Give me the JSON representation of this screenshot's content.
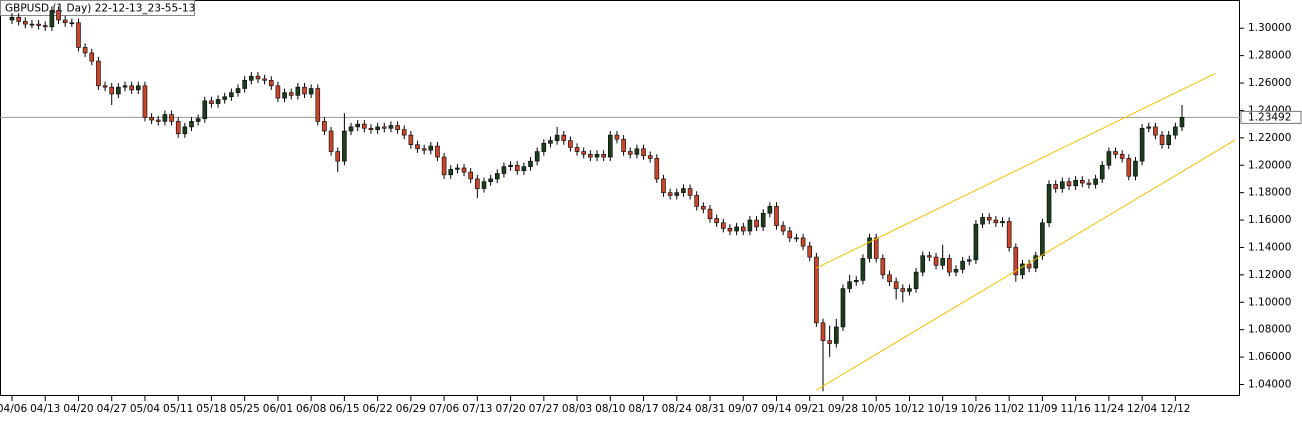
{
  "chart_data": {
    "type": "candlestick",
    "title": "GBPUSD (1 Day) 22-12-13_23-55-13",
    "up_color": "#1e3d1e",
    "down_color": "#c9452b",
    "trendline_color": "#f2c200",
    "price_line": 1.23492,
    "ylim": [
      1.0316,
      1.3206
    ],
    "yticks": [
      {
        "value": 1.3,
        "label": "1.30000"
      },
      {
        "value": 1.28,
        "label": "1.28000"
      },
      {
        "value": 1.26,
        "label": "1.26000"
      },
      {
        "value": 1.24,
        "label": "1.24000"
      },
      {
        "value": 1.22,
        "label": "1.22000"
      },
      {
        "value": 1.2,
        "label": "1.20000"
      },
      {
        "value": 1.18,
        "label": "1.18000"
      },
      {
        "value": 1.16,
        "label": "1.16000"
      },
      {
        "value": 1.14,
        "label": "1.14000"
      },
      {
        "value": 1.12,
        "label": "1.12000"
      },
      {
        "value": 1.1,
        "label": "1.10000"
      },
      {
        "value": 1.08,
        "label": "1.08000"
      },
      {
        "value": 1.06,
        "label": "1.06000"
      },
      {
        "value": 1.04,
        "label": "1.04000"
      }
    ],
    "categories": [
      "04/06",
      null,
      null,
      null,
      null,
      "04/13",
      null,
      null,
      null,
      null,
      "04/20",
      null,
      null,
      null,
      null,
      "04/27",
      null,
      null,
      null,
      null,
      "05/04",
      null,
      null,
      null,
      null,
      "05/11",
      null,
      null,
      null,
      null,
      "05/18",
      null,
      null,
      null,
      null,
      "05/25",
      null,
      null,
      null,
      null,
      "06/01",
      null,
      null,
      null,
      null,
      "06/08",
      null,
      null,
      null,
      null,
      "06/15",
      null,
      null,
      null,
      null,
      "06/22",
      null,
      null,
      null,
      null,
      "06/29",
      null,
      null,
      null,
      null,
      "07/06",
      null,
      null,
      null,
      null,
      "07/13",
      null,
      null,
      null,
      null,
      "07/20",
      null,
      null,
      null,
      null,
      "07/27",
      null,
      null,
      null,
      null,
      "08/03",
      null,
      null,
      null,
      null,
      "08/10",
      null,
      null,
      null,
      null,
      "08/17",
      null,
      null,
      null,
      null,
      "08/24",
      null,
      null,
      null,
      null,
      "08/31",
      null,
      null,
      null,
      null,
      "09/07",
      null,
      null,
      null,
      null,
      "09/14",
      null,
      null,
      null,
      null,
      "09/21",
      null,
      null,
      null,
      null,
      "09/28",
      null,
      null,
      null,
      null,
      "10/05",
      null,
      null,
      null,
      null,
      "10/12",
      null,
      null,
      null,
      null,
      "10/19",
      null,
      null,
      null,
      null,
      "10/26",
      null,
      null,
      null,
      null,
      "11/02",
      null,
      null,
      null,
      null,
      "11/09",
      null,
      null,
      null,
      null,
      "11/16",
      null,
      null,
      null,
      null,
      "11/24",
      null,
      null,
      null,
      null,
      "12/04",
      null,
      null,
      null,
      null,
      "12/12",
      null
    ],
    "open": [
      1.306,
      1.308,
      1.305,
      1.303,
      1.303,
      1.302,
      1.301,
      1.313,
      1.306,
      1.304,
      1.304,
      1.286,
      1.282,
      1.276,
      1.258,
      1.257,
      1.252,
      1.257,
      1.258,
      1.255,
      1.258,
      1.235,
      1.233,
      1.232,
      1.237,
      1.232,
      1.223,
      1.228,
      1.232,
      1.234,
      1.247,
      1.245,
      1.248,
      1.25,
      1.253,
      1.256,
      1.262,
      1.265,
      1.263,
      1.262,
      1.258,
      1.249,
      1.253,
      1.251,
      1.257,
      1.252,
      1.256,
      1.232,
      1.225,
      1.21,
      1.203,
      1.225,
      1.228,
      1.23,
      1.227,
      1.226,
      1.228,
      1.227,
      1.229,
      1.226,
      1.222,
      1.215,
      1.212,
      1.211,
      1.214,
      1.206,
      1.193,
      1.197,
      1.198,
      1.195,
      1.19,
      1.183,
      1.188,
      1.19,
      1.194,
      1.199,
      1.2,
      1.196,
      1.199,
      1.203,
      1.21,
      1.216,
      1.218,
      1.222,
      1.218,
      1.213,
      1.21,
      1.208,
      1.206,
      1.208,
      1.206,
      1.222,
      1.219,
      1.21,
      1.208,
      1.212,
      1.207,
      1.205,
      1.19,
      1.18,
      1.178,
      1.18,
      1.183,
      1.178,
      1.17,
      1.168,
      1.161,
      1.158,
      1.154,
      1.152,
      1.155,
      1.152,
      1.16,
      1.155,
      1.165,
      1.17,
      1.156,
      1.152,
      1.147,
      1.147,
      1.141,
      1.133,
      1.085,
      1.072,
      1.07,
      1.082,
      1.11,
      1.115,
      1.116,
      1.132,
      1.147,
      1.132,
      1.12,
      1.115,
      1.11,
      1.108,
      1.11,
      1.122,
      1.134,
      1.133,
      1.127,
      1.132,
      1.122,
      1.124,
      1.13,
      1.131,
      1.157,
      1.162,
      1.16,
      1.158,
      1.159,
      1.14,
      1.12,
      1.128,
      1.125,
      1.134,
      1.158,
      1.186,
      1.183,
      1.188,
      1.185,
      1.189,
      1.187,
      1.186,
      1.19,
      1.2,
      1.21,
      1.208,
      1.205,
      1.192,
      1.203,
      1.227,
      1.228,
      1.222,
      1.215,
      1.222,
      1.228
    ],
    "high": [
      1.311,
      1.311,
      1.308,
      1.306,
      1.306,
      1.305,
      1.316,
      1.316,
      1.309,
      1.307,
      1.307,
      1.289,
      1.285,
      1.279,
      1.261,
      1.26,
      1.26,
      1.261,
      1.261,
      1.261,
      1.261,
      1.238,
      1.236,
      1.24,
      1.24,
      1.235,
      1.231,
      1.235,
      1.237,
      1.25,
      1.25,
      1.251,
      1.253,
      1.256,
      1.259,
      1.265,
      1.268,
      1.268,
      1.266,
      1.265,
      1.261,
      1.256,
      1.256,
      1.26,
      1.26,
      1.259,
      1.259,
      1.235,
      1.228,
      1.213,
      1.238,
      1.231,
      1.233,
      1.233,
      1.23,
      1.231,
      1.231,
      1.232,
      1.232,
      1.229,
      1.225,
      1.218,
      1.215,
      1.217,
      1.217,
      1.209,
      1.2,
      1.201,
      1.201,
      1.198,
      1.193,
      1.191,
      1.193,
      1.197,
      1.202,
      1.203,
      1.203,
      1.202,
      1.206,
      1.213,
      1.219,
      1.221,
      1.228,
      1.225,
      1.221,
      1.216,
      1.213,
      1.211,
      1.211,
      1.211,
      1.225,
      1.225,
      1.222,
      1.213,
      1.215,
      1.215,
      1.21,
      1.208,
      1.193,
      1.183,
      1.183,
      1.186,
      1.186,
      1.181,
      1.173,
      1.171,
      1.164,
      1.161,
      1.157,
      1.158,
      1.158,
      1.163,
      1.163,
      1.168,
      1.173,
      1.173,
      1.159,
      1.155,
      1.15,
      1.15,
      1.144,
      1.136,
      1.088,
      1.083,
      1.088,
      1.113,
      1.12,
      1.119,
      1.135,
      1.15,
      1.15,
      1.135,
      1.123,
      1.118,
      1.113,
      1.113,
      1.125,
      1.137,
      1.137,
      1.136,
      1.142,
      1.135,
      1.127,
      1.133,
      1.134,
      1.16,
      1.165,
      1.165,
      1.163,
      1.162,
      1.162,
      1.143,
      1.131,
      1.131,
      1.137,
      1.161,
      1.189,
      1.189,
      1.191,
      1.191,
      1.192,
      1.192,
      1.19,
      1.193,
      1.203,
      1.213,
      1.213,
      1.211,
      1.208,
      1.206,
      1.23,
      1.231,
      1.231,
      1.225,
      1.225,
      1.231,
      1.244
    ],
    "low": [
      1.303,
      1.302,
      1.3,
      1.3,
      1.299,
      1.298,
      1.298,
      1.303,
      1.301,
      1.301,
      1.283,
      1.279,
      1.273,
      1.255,
      1.254,
      1.244,
      1.249,
      1.254,
      1.252,
      1.252,
      1.232,
      1.23,
      1.229,
      1.229,
      1.229,
      1.22,
      1.22,
      1.225,
      1.229,
      1.231,
      1.242,
      1.242,
      1.245,
      1.247,
      1.25,
      1.253,
      1.259,
      1.26,
      1.259,
      1.255,
      1.246,
      1.246,
      1.248,
      1.248,
      1.249,
      1.249,
      1.229,
      1.222,
      1.207,
      1.195,
      1.2,
      1.222,
      1.225,
      1.224,
      1.223,
      1.223,
      1.224,
      1.224,
      1.223,
      1.219,
      1.212,
      1.209,
      1.208,
      1.208,
      1.203,
      1.19,
      1.19,
      1.194,
      1.192,
      1.187,
      1.176,
      1.18,
      1.185,
      1.187,
      1.191,
      1.196,
      1.193,
      1.193,
      1.196,
      1.2,
      1.207,
      1.213,
      1.215,
      1.215,
      1.21,
      1.207,
      1.205,
      1.203,
      1.203,
      1.203,
      1.203,
      1.216,
      1.207,
      1.205,
      1.205,
      1.204,
      1.202,
      1.187,
      1.177,
      1.175,
      1.175,
      1.177,
      1.175,
      1.167,
      1.165,
      1.158,
      1.155,
      1.151,
      1.149,
      1.149,
      1.149,
      1.149,
      1.152,
      1.152,
      1.162,
      1.153,
      1.149,
      1.144,
      1.144,
      1.138,
      1.13,
      1.082,
      1.035,
      1.06,
      1.067,
      1.079,
      1.107,
      1.112,
      1.113,
      1.129,
      1.129,
      1.117,
      1.112,
      1.102,
      1.1,
      1.105,
      1.107,
      1.119,
      1.13,
      1.124,
      1.124,
      1.119,
      1.119,
      1.121,
      1.127,
      1.128,
      1.154,
      1.157,
      1.155,
      1.155,
      1.137,
      1.115,
      1.117,
      1.122,
      1.122,
      1.131,
      1.155,
      1.18,
      1.18,
      1.182,
      1.182,
      1.184,
      1.183,
      1.183,
      1.187,
      1.197,
      1.205,
      1.202,
      1.189,
      1.189,
      1.2,
      1.224,
      1.219,
      1.212,
      1.212,
      1.219,
      1.225
    ],
    "close": [
      1.308,
      1.305,
      1.303,
      1.303,
      1.302,
      1.301,
      1.313,
      1.306,
      1.304,
      1.304,
      1.286,
      1.282,
      1.276,
      1.258,
      1.257,
      1.252,
      1.257,
      1.258,
      1.255,
      1.258,
      1.235,
      1.233,
      1.232,
      1.237,
      1.232,
      1.223,
      1.228,
      1.232,
      1.234,
      1.247,
      1.245,
      1.248,
      1.25,
      1.253,
      1.256,
      1.262,
      1.265,
      1.263,
      1.262,
      1.258,
      1.249,
      1.253,
      1.251,
      1.257,
      1.252,
      1.256,
      1.232,
      1.225,
      1.21,
      1.203,
      1.225,
      1.228,
      1.23,
      1.227,
      1.226,
      1.228,
      1.227,
      1.229,
      1.226,
      1.222,
      1.215,
      1.212,
      1.211,
      1.214,
      1.206,
      1.193,
      1.197,
      1.198,
      1.195,
      1.19,
      1.183,
      1.188,
      1.19,
      1.194,
      1.199,
      1.2,
      1.196,
      1.199,
      1.203,
      1.21,
      1.216,
      1.218,
      1.222,
      1.218,
      1.213,
      1.21,
      1.208,
      1.206,
      1.208,
      1.206,
      1.222,
      1.219,
      1.21,
      1.208,
      1.212,
      1.207,
      1.205,
      1.19,
      1.18,
      1.178,
      1.18,
      1.183,
      1.178,
      1.17,
      1.168,
      1.161,
      1.158,
      1.154,
      1.152,
      1.155,
      1.152,
      1.16,
      1.155,
      1.165,
      1.17,
      1.156,
      1.152,
      1.147,
      1.147,
      1.141,
      1.133,
      1.085,
      1.072,
      1.07,
      1.082,
      1.11,
      1.115,
      1.116,
      1.132,
      1.147,
      1.132,
      1.12,
      1.115,
      1.11,
      1.108,
      1.11,
      1.122,
      1.134,
      1.133,
      1.127,
      1.132,
      1.122,
      1.124,
      1.13,
      1.131,
      1.157,
      1.162,
      1.16,
      1.158,
      1.159,
      1.14,
      1.12,
      1.128,
      1.125,
      1.134,
      1.158,
      1.186,
      1.183,
      1.188,
      1.185,
      1.189,
      1.187,
      1.186,
      1.19,
      1.2,
      1.21,
      1.208,
      1.205,
      1.192,
      1.203,
      1.227,
      1.228,
      1.222,
      1.215,
      1.222,
      1.228,
      1.23492
    ],
    "trendlines": [
      {
        "x": [
          121,
          181
        ],
        "y": [
          1.125,
          1.267
        ]
      },
      {
        "x": [
          121,
          184
        ],
        "y": [
          1.036,
          1.2185
        ]
      }
    ]
  }
}
